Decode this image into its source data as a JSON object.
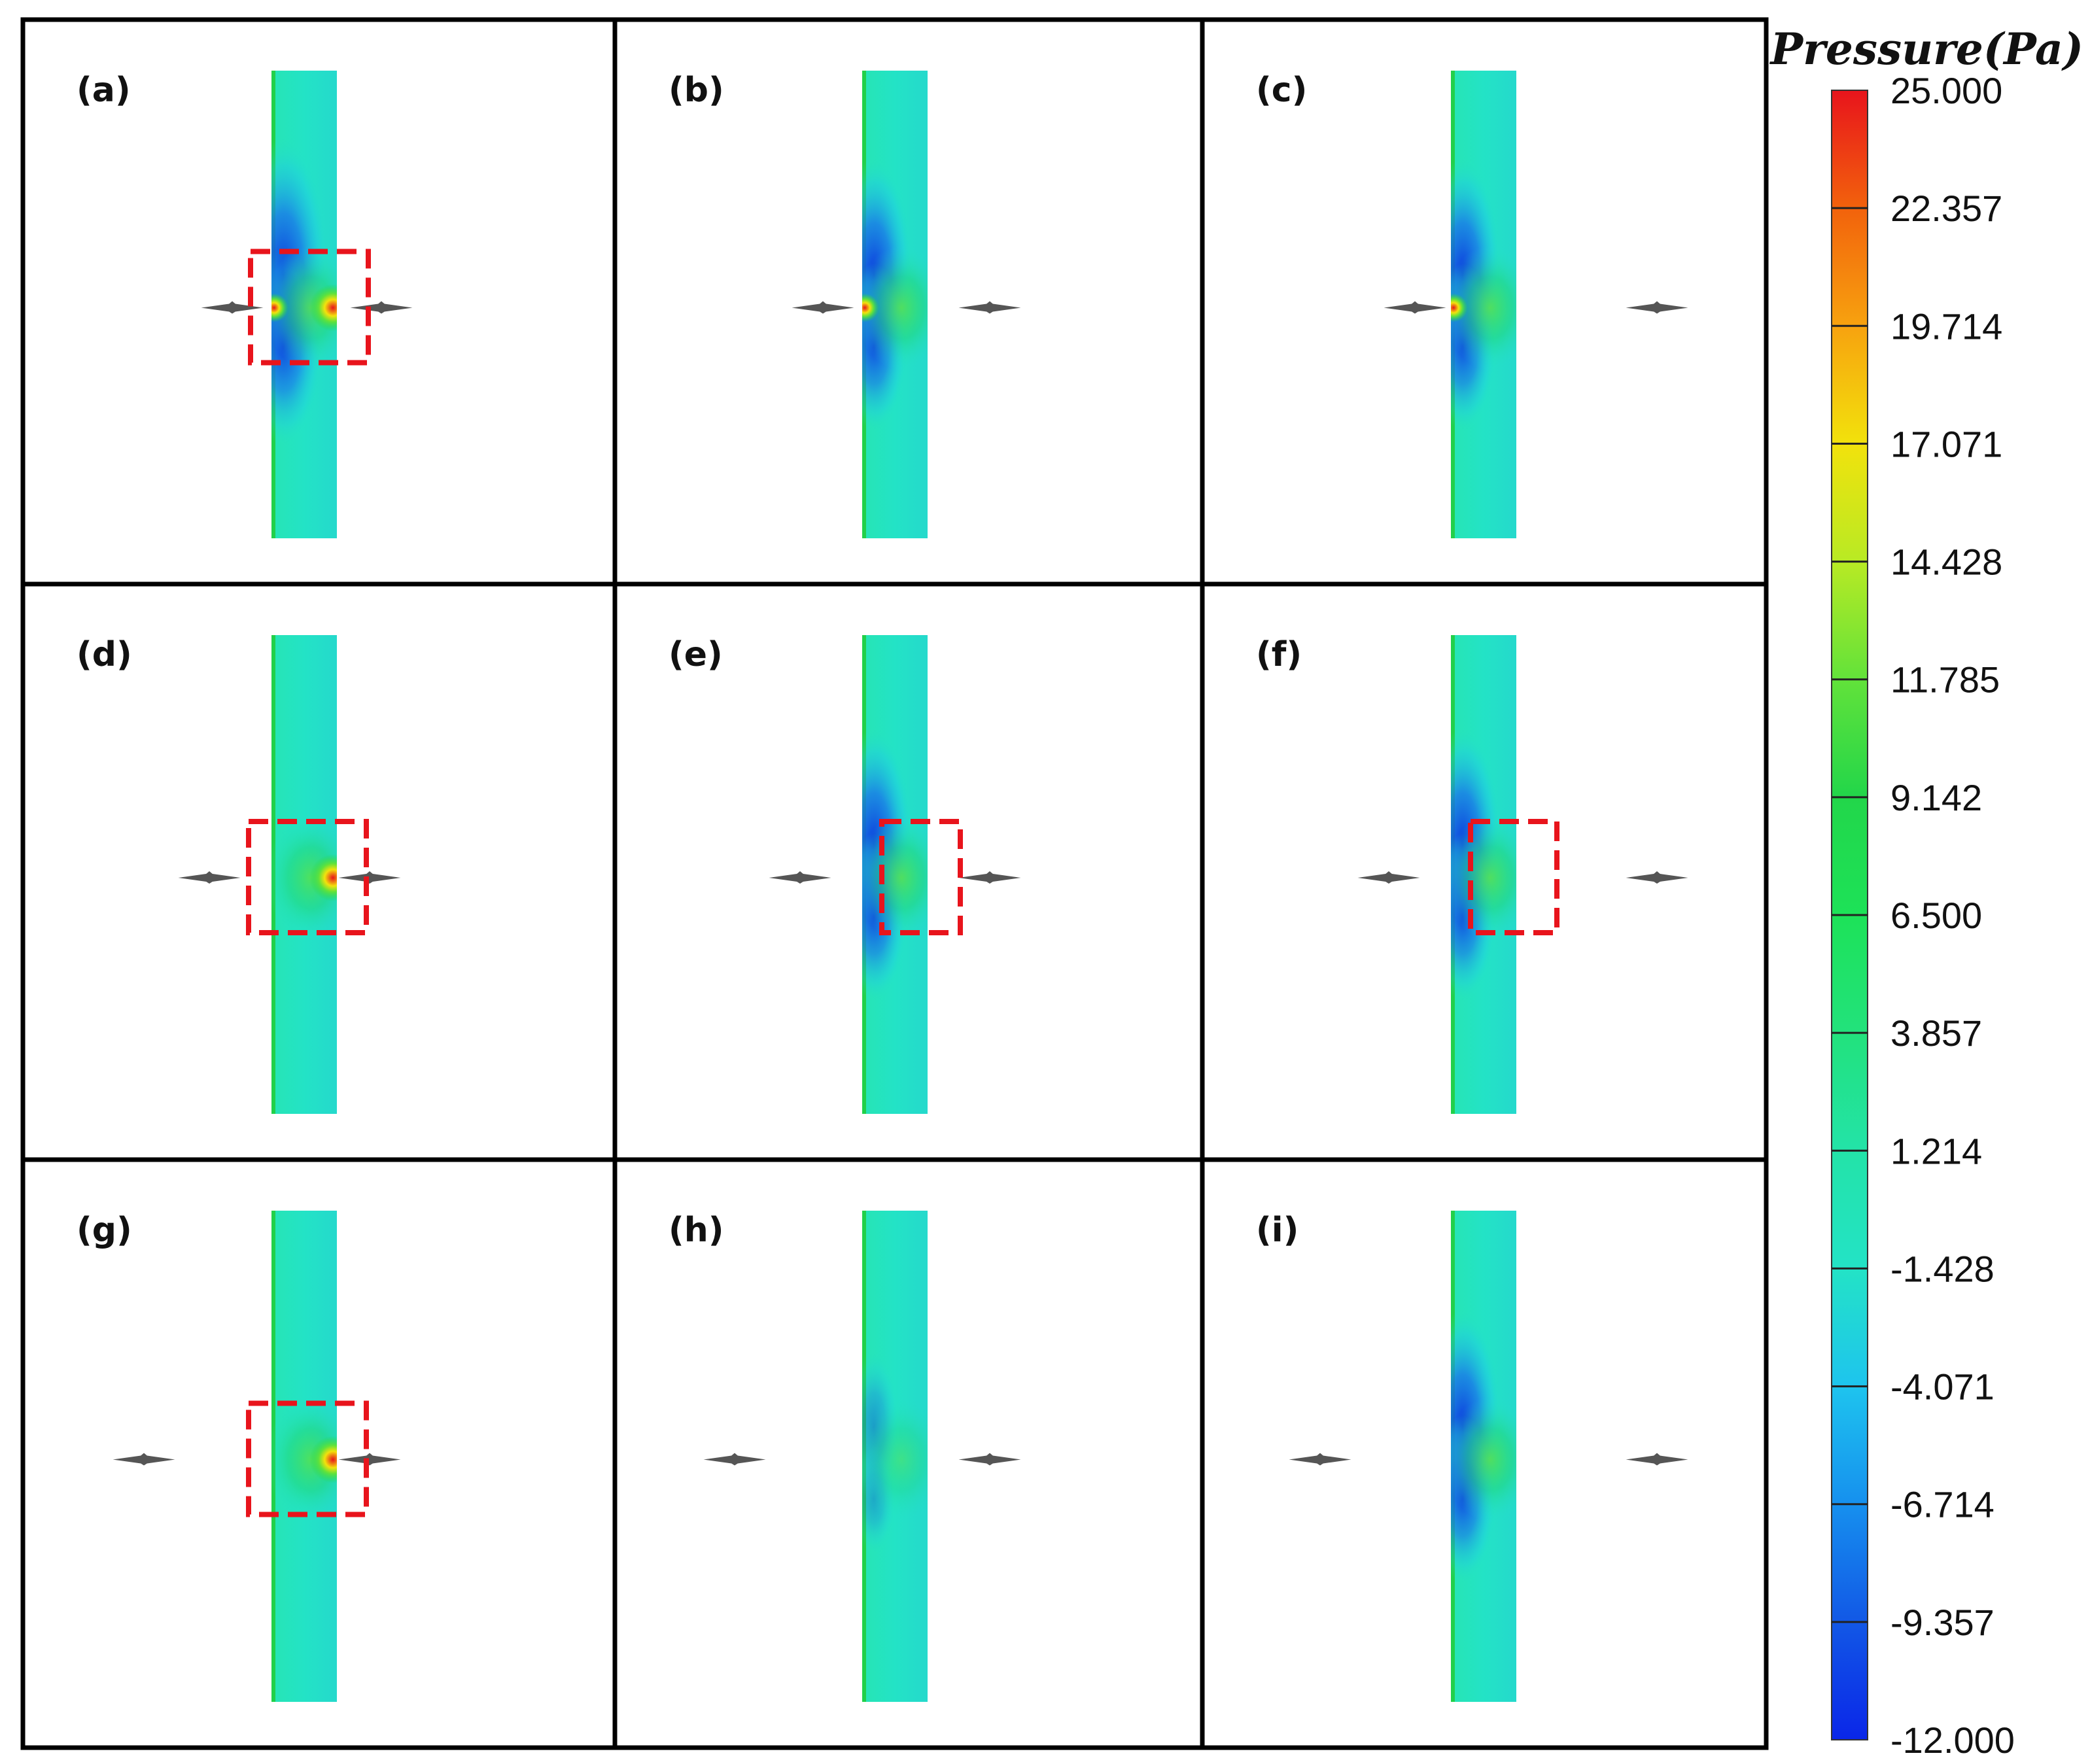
{
  "figure": {
    "colors": {
      "background": "#ffffff",
      "grid_line": "#000000",
      "highlight_box": "#e8141c",
      "probe": "#555555",
      "field_base": "#23e3c6",
      "low_pressure": "#0a2ee0",
      "high_pressure": "#e8141c"
    },
    "panels": [
      {
        "label": "(a)",
        "highlight_box": true,
        "source_spot": "both",
        "low_lobe": "strong"
      },
      {
        "label": "(b)",
        "highlight_box": false,
        "source_spot": "left",
        "low_lobe": "medium"
      },
      {
        "label": "(c)",
        "highlight_box": false,
        "source_spot": "left",
        "low_lobe": "medium"
      },
      {
        "label": "(d)",
        "highlight_box": true,
        "source_spot": "right",
        "low_lobe": "none"
      },
      {
        "label": "(e)",
        "highlight_box": true,
        "source_spot": "none",
        "low_lobe": "medium"
      },
      {
        "label": "(f)",
        "highlight_box": true,
        "source_spot": "none",
        "low_lobe": "medium"
      },
      {
        "label": "(g)",
        "highlight_box": true,
        "source_spot": "right",
        "low_lobe": "none"
      },
      {
        "label": "(h)",
        "highlight_box": false,
        "source_spot": "none",
        "low_lobe": "weak"
      },
      {
        "label": "(i)",
        "highlight_box": false,
        "source_spot": "none",
        "low_lobe": "medium"
      }
    ]
  },
  "legend": {
    "title": "Pressure(Pa)",
    "min": -12.0,
    "max": 25.0,
    "ticks": [
      "25.000",
      "22.357",
      "19.714",
      "17.071",
      "14.428",
      "11.785",
      "9.142",
      "6.500",
      "3.857",
      "1.214",
      "-1.428",
      "-4.071",
      "-6.714",
      "-9.357",
      "-12.000"
    ],
    "colors": [
      "#e8141c",
      "#f2620c",
      "#f7a20f",
      "#f2e20c",
      "#b8ea24",
      "#62e23a",
      "#22d64a",
      "#1de258",
      "#22e27c",
      "#23e3a8",
      "#23e3c6",
      "#1ec4ee",
      "#1690ee",
      "#1258e6",
      "#0a26e8"
    ]
  }
}
